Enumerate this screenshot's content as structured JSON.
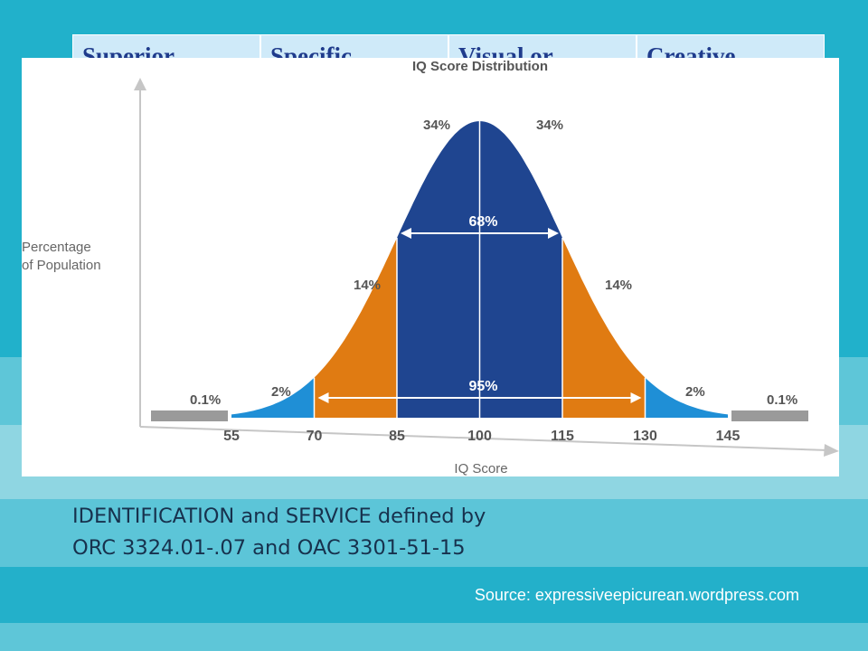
{
  "slide": {
    "header_cells": [
      "Superior",
      "Specific",
      "Visual or",
      "Creative"
    ],
    "caption_line1": "IDENTIFICATION and SERVICE defined by",
    "caption_line2": "ORC 3324.01-.07 and OAC 3301-51-15",
    "source": "Source: expressiveepicurean.wordpress.com"
  },
  "chart_data": {
    "type": "area",
    "title": "IQ Score Distribution",
    "xlabel": "IQ Score",
    "ylabel_line1": "Percentage",
    "ylabel_line2": "of Population",
    "x_ticks": [
      55,
      70,
      85,
      100,
      115,
      130,
      145
    ],
    "mean": 100,
    "sd": 15,
    "segments": [
      {
        "from": 40,
        "to": 55,
        "label": "0.1%",
        "color": "#9a9a9a"
      },
      {
        "from": 55,
        "to": 70,
        "label": "2%",
        "color": "#1f8fd6"
      },
      {
        "from": 70,
        "to": 85,
        "label": "14%",
        "color": "#e07b12"
      },
      {
        "from": 85,
        "to": 100,
        "label": "34%",
        "color": "#1f4590"
      },
      {
        "from": 100,
        "to": 115,
        "label": "34%",
        "color": "#1f4590"
      },
      {
        "from": 115,
        "to": 130,
        "label": "14%",
        "color": "#e07b12"
      },
      {
        "from": 130,
        "to": 145,
        "label": "2%",
        "color": "#1f8fd6"
      },
      {
        "from": 145,
        "to": 160,
        "label": "0.1%",
        "color": "#9a9a9a"
      }
    ],
    "ranges": [
      {
        "from": 85,
        "to": 115,
        "label": "68%"
      },
      {
        "from": 70,
        "to": 130,
        "label": "95%"
      }
    ],
    "grid": false,
    "legend": "none"
  }
}
